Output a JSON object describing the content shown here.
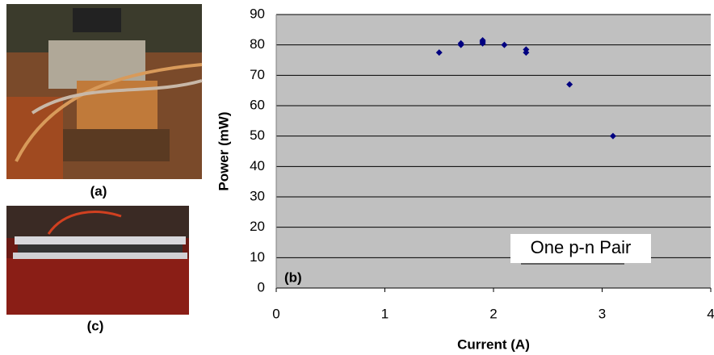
{
  "panels": [
    {
      "label": "(a)"
    },
    {
      "label": "(c)"
    }
  ],
  "chart_data": {
    "type": "scatter",
    "panel_label": "(b)",
    "annotation": "One p-n Pair",
    "x_label": "Current (A)",
    "y_label": "Power (mW)",
    "x": [
      1.5,
      1.7,
      1.7,
      1.9,
      1.9,
      1.9,
      2.1,
      2.3,
      2.3,
      2.7,
      3.1
    ],
    "values": [
      77.5,
      80,
      80.5,
      81,
      81.5,
      80.5,
      80,
      78.5,
      77.5,
      67,
      50
    ],
    "color": "#000080",
    "xlim": [
      0,
      4
    ],
    "xticks": [
      0,
      1,
      2,
      3,
      4
    ],
    "ylim": [
      0,
      90
    ],
    "yticks": [
      0,
      10,
      20,
      30,
      40,
      50,
      60,
      70,
      80,
      90
    ],
    "grid": true
  }
}
